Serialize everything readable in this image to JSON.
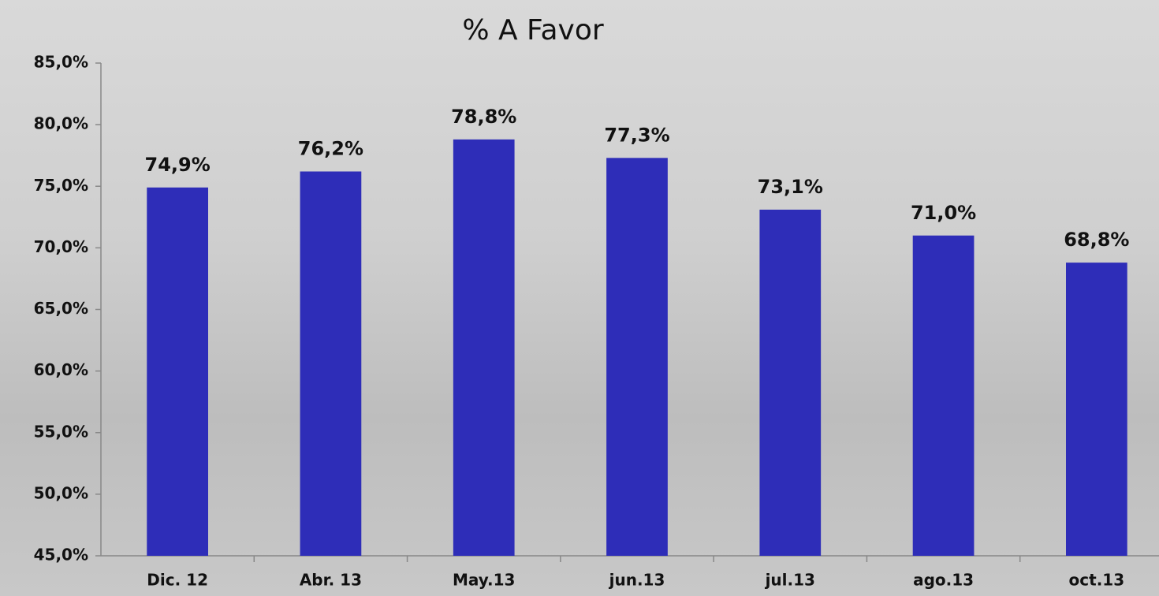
{
  "chart_data": {
    "type": "bar",
    "title": "% A Favor",
    "categories": [
      "Dic. 12",
      "Abr. 13",
      "May.13",
      "jun.13",
      "jul.13",
      "ago.13",
      "oct.13"
    ],
    "values": [
      74.9,
      76.2,
      78.8,
      77.3,
      73.1,
      71.0,
      68.8
    ],
    "value_labels": [
      "74,9%",
      "76,2%",
      "78,8%",
      "77,3%",
      "73,1%",
      "71,0%",
      "68,8%"
    ],
    "color": "#2e2db8",
    "ylim": [
      45,
      85
    ],
    "yticks": [
      {
        "value": 45,
        "label": "45,0%"
      },
      {
        "value": 50,
        "label": "50,0%"
      },
      {
        "value": 55,
        "label": "55,0%"
      },
      {
        "value": 60,
        "label": "60,0%"
      },
      {
        "value": 65,
        "label": "65,0%"
      },
      {
        "value": 70,
        "label": "70,0%"
      },
      {
        "value": 75,
        "label": "75,0%"
      },
      {
        "value": 80,
        "label": "80,0%"
      },
      {
        "value": 85,
        "label": "85,0%"
      }
    ],
    "grid": false
  }
}
